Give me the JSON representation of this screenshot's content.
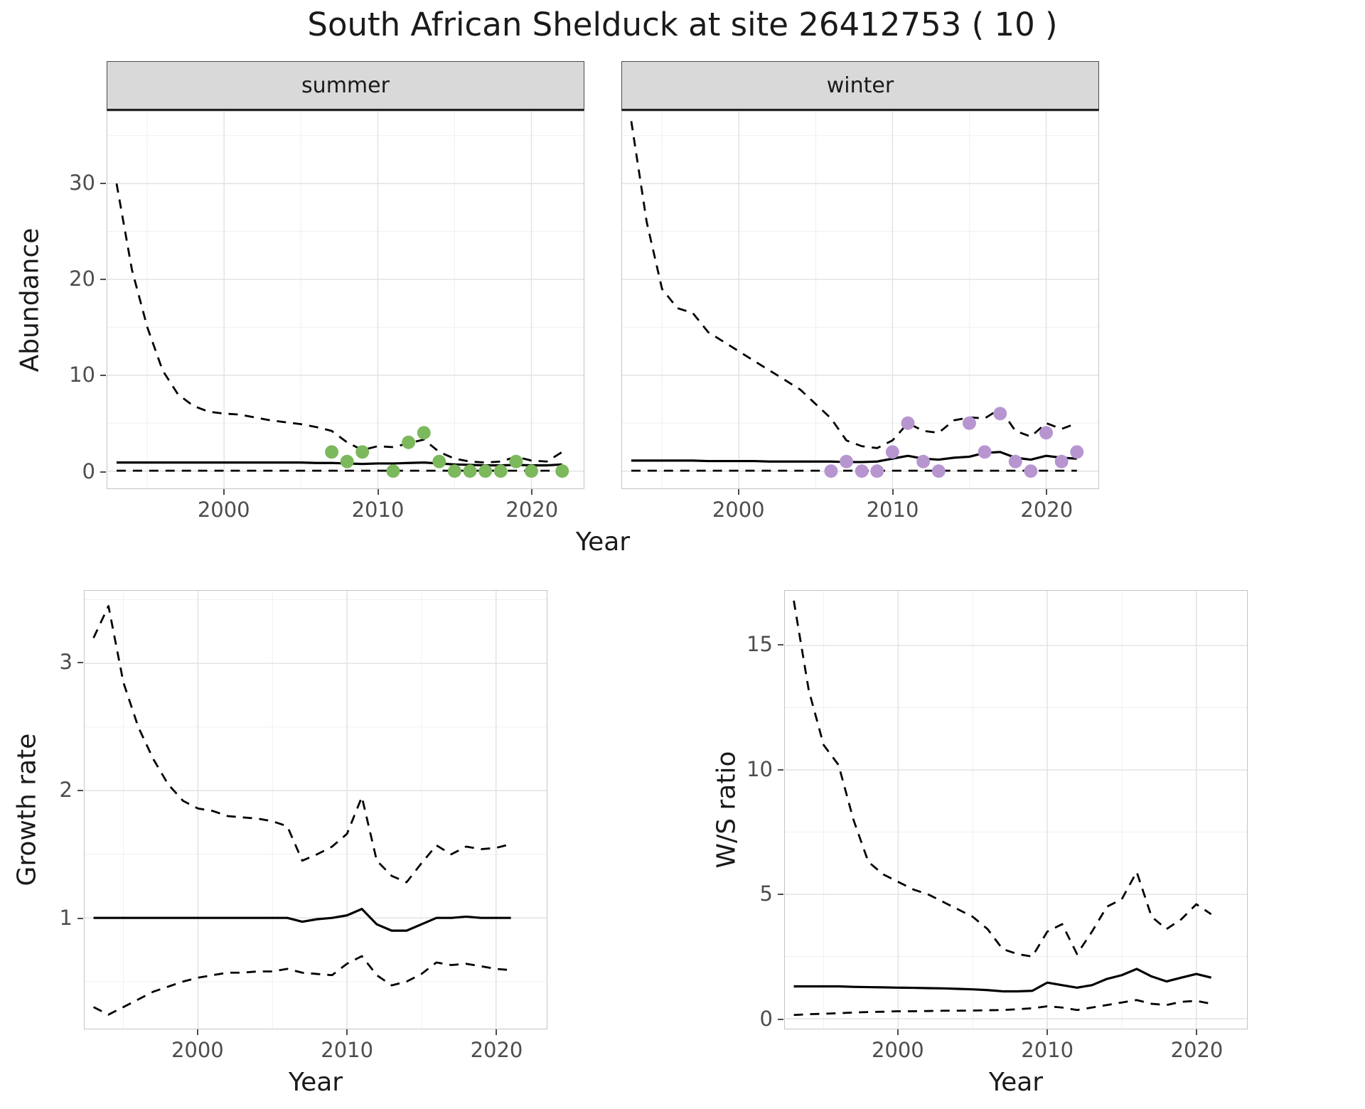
{
  "title": "South African Shelduck at site 26412753 ( 10 )",
  "top_plot": {
    "facets": [
      "summer",
      "winter"
    ],
    "y_axis_label": "Abundance",
    "x_axis_label": "Year"
  },
  "growth_plot": {
    "y_axis_label": "Growth rate",
    "x_axis_label": "Year"
  },
  "ws_plot": {
    "y_axis_label": "W/S ratio",
    "x_axis_label": "Year"
  },
  "colors": {
    "summer_point": "#7cb85c",
    "winter_point": "#b795cf",
    "line": "#000000",
    "strip_bg": "#d9d9d9",
    "grid_major": "#e3e3e3",
    "grid_minor": "#f0f0f0",
    "panel_border": "#c4c4c4",
    "tick_text": "#4d4d4d"
  },
  "chart_data": [
    {
      "type": "line",
      "name": "abundance-summer",
      "facet": "summer",
      "xlabel": "Year",
      "ylabel": "Abundance",
      "xlim": [
        1992.4,
        2023.4
      ],
      "ylim": [
        -1.8,
        37.5
      ],
      "xticks": [
        2000,
        2010,
        2020
      ],
      "x_minor": [
        1995,
        2005,
        2015
      ],
      "yticks": [
        0,
        10,
        20,
        30
      ],
      "y_minor": [
        5,
        15,
        25,
        35
      ],
      "x": [
        1993,
        1994,
        1995,
        1996,
        1997,
        1998,
        1999,
        2000,
        2001,
        2002,
        2003,
        2004,
        2005,
        2006,
        2007,
        2008,
        2009,
        2010,
        2011,
        2012,
        2013,
        2014,
        2015,
        2016,
        2017,
        2018,
        2019,
        2020,
        2021,
        2022
      ],
      "series": [
        {
          "name": "upper-credible-interval",
          "linetype": "dashed",
          "values": [
            30,
            21,
            15,
            10.5,
            8,
            6.8,
            6.2,
            6,
            5.9,
            5.6,
            5.3,
            5.1,
            4.9,
            4.6,
            4.2,
            3,
            2.2,
            2.6,
            2.5,
            2.9,
            3.3,
            2,
            1.3,
            1,
            0.9,
            1,
            1.5,
            1.1,
            1,
            2
          ]
        },
        {
          "name": "median",
          "linetype": "solid",
          "values": [
            0.9,
            0.9,
            0.9,
            0.9,
            0.9,
            0.9,
            0.9,
            0.9,
            0.9,
            0.9,
            0.9,
            0.9,
            0.9,
            0.85,
            0.85,
            0.8,
            0.75,
            0.8,
            0.8,
            0.85,
            0.9,
            0.8,
            0.7,
            0.65,
            0.6,
            0.6,
            0.65,
            0.6,
            0.6,
            0.7
          ]
        },
        {
          "name": "lower-credible-interval",
          "linetype": "dashed",
          "values": [
            0.05,
            0.05,
            0.05,
            0.05,
            0.05,
            0.05,
            0.05,
            0.05,
            0.05,
            0.05,
            0.05,
            0.05,
            0.05,
            0.05,
            0.05,
            0.05,
            0.05,
            0.05,
            0.05,
            0.05,
            0.05,
            0.05,
            0.05,
            0.05,
            0.05,
            0.05,
            0.05,
            0.05,
            0.05,
            0.05
          ]
        }
      ],
      "points": {
        "name": "observed-summer-counts",
        "color_key": "summer_point",
        "data": [
          [
            2007,
            2
          ],
          [
            2008,
            1
          ],
          [
            2009,
            2
          ],
          [
            2011,
            0
          ],
          [
            2012,
            3
          ],
          [
            2013,
            4
          ],
          [
            2014,
            1
          ],
          [
            2015,
            0
          ],
          [
            2016,
            0
          ],
          [
            2017,
            0
          ],
          [
            2018,
            0
          ],
          [
            2019,
            1
          ],
          [
            2020,
            0
          ],
          [
            2022,
            0
          ]
        ]
      }
    },
    {
      "type": "line",
      "name": "abundance-winter",
      "facet": "winter",
      "xlabel": "Year",
      "ylabel": "Abundance",
      "xlim": [
        1992.4,
        2023.4
      ],
      "ylim": [
        -1.8,
        37.5
      ],
      "xticks": [
        2000,
        2010,
        2020
      ],
      "x_minor": [
        1995,
        2005,
        2015
      ],
      "yticks": [
        0,
        10,
        20,
        30
      ],
      "y_minor": [
        5,
        15,
        25,
        35
      ],
      "x": [
        1993,
        1994,
        1995,
        1996,
        1997,
        1998,
        1999,
        2000,
        2001,
        2002,
        2003,
        2004,
        2005,
        2006,
        2007,
        2008,
        2009,
        2010,
        2011,
        2012,
        2013,
        2014,
        2015,
        2016,
        2017,
        2018,
        2019,
        2020,
        2021,
        2022
      ],
      "series": [
        {
          "name": "upper-credible-interval",
          "linetype": "dashed",
          "values": [
            36.5,
            26,
            19,
            17,
            16.5,
            14.5,
            13.5,
            12.5,
            11.5,
            10.5,
            9.5,
            8.5,
            7,
            5.5,
            3.2,
            2.6,
            2.4,
            3.2,
            5,
            4.2,
            4,
            5.3,
            5.6,
            5.5,
            6.5,
            4.2,
            3.6,
            5,
            4.4,
            5
          ]
        },
        {
          "name": "median",
          "linetype": "solid",
          "values": [
            1.1,
            1.1,
            1.1,
            1.1,
            1.1,
            1.05,
            1.05,
            1.05,
            1.05,
            1,
            1,
            1,
            1,
            1,
            0.95,
            0.95,
            1,
            1.3,
            1.6,
            1.3,
            1.2,
            1.4,
            1.5,
            1.9,
            2,
            1.4,
            1.2,
            1.6,
            1.4,
            1.3
          ]
        },
        {
          "name": "lower-credible-interval",
          "linetype": "dashed",
          "values": [
            0.05,
            0.05,
            0.05,
            0.05,
            0.05,
            0.05,
            0.05,
            0.05,
            0.05,
            0.05,
            0.05,
            0.05,
            0.05,
            0.05,
            0.05,
            0.05,
            0.05,
            0.05,
            0.05,
            0.05,
            0.05,
            0.05,
            0.05,
            0.05,
            0.05,
            0.05,
            0.05,
            0.05,
            0.05,
            0.05
          ]
        }
      ],
      "points": {
        "name": "observed-winter-counts",
        "color_key": "winter_point",
        "data": [
          [
            2006,
            0
          ],
          [
            2007,
            1
          ],
          [
            2008,
            0
          ],
          [
            2009,
            0
          ],
          [
            2010,
            2
          ],
          [
            2011,
            5
          ],
          [
            2012,
            1
          ],
          [
            2013,
            0
          ],
          [
            2015,
            5
          ],
          [
            2016,
            2
          ],
          [
            2017,
            6
          ],
          [
            2018,
            1
          ],
          [
            2019,
            0
          ],
          [
            2020,
            4
          ],
          [
            2021,
            1
          ],
          [
            2022,
            2
          ]
        ]
      }
    },
    {
      "type": "line",
      "name": "growth-rate",
      "xlabel": "Year",
      "ylabel": "Growth rate",
      "xlim": [
        1992.4,
        2023.4
      ],
      "ylim": [
        0.13,
        3.57
      ],
      "xticks": [
        2000,
        2010,
        2020
      ],
      "x_minor": [
        1995,
        2005,
        2015
      ],
      "yticks": [
        1,
        2,
        3
      ],
      "y_minor": [
        0.5,
        1.5,
        2.5,
        3.5
      ],
      "x": [
        1993,
        1994,
        1995,
        1996,
        1997,
        1998,
        1999,
        2000,
        2001,
        2002,
        2003,
        2004,
        2005,
        2006,
        2007,
        2008,
        2009,
        2010,
        2011,
        2012,
        2013,
        2014,
        2015,
        2016,
        2017,
        2018,
        2019,
        2020,
        2021
      ],
      "series": [
        {
          "name": "upper-credible-interval",
          "linetype": "dashed",
          "values": [
            3.2,
            3.45,
            2.85,
            2.5,
            2.25,
            2.05,
            1.92,
            1.86,
            1.84,
            1.8,
            1.79,
            1.78,
            1.76,
            1.72,
            1.45,
            1.5,
            1.56,
            1.66,
            1.95,
            1.45,
            1.33,
            1.28,
            1.43,
            1.57,
            1.5,
            1.56,
            1.54,
            1.55,
            1.58
          ]
        },
        {
          "name": "median",
          "linetype": "solid",
          "values": [
            1,
            1,
            1,
            1,
            1,
            1,
            1,
            1,
            1,
            1,
            1,
            1,
            1,
            1,
            0.97,
            0.99,
            1,
            1.02,
            1.07,
            0.95,
            0.9,
            0.9,
            0.95,
            1,
            1,
            1.01,
            1,
            1,
            1
          ]
        },
        {
          "name": "lower-credible-interval",
          "linetype": "dashed",
          "values": [
            0.3,
            0.24,
            0.3,
            0.36,
            0.42,
            0.46,
            0.5,
            0.53,
            0.55,
            0.57,
            0.57,
            0.58,
            0.58,
            0.6,
            0.57,
            0.56,
            0.55,
            0.64,
            0.7,
            0.55,
            0.47,
            0.5,
            0.56,
            0.65,
            0.63,
            0.64,
            0.62,
            0.6,
            0.59
          ]
        }
      ]
    },
    {
      "type": "line",
      "name": "winter-summer-ratio",
      "xlabel": "Year",
      "ylabel": "W/S ratio",
      "xlim": [
        1992.4,
        2023.4
      ],
      "ylim": [
        -0.4,
        17.2
      ],
      "xticks": [
        2000,
        2010,
        2020
      ],
      "x_minor": [
        1995,
        2005,
        2015
      ],
      "yticks": [
        0,
        5,
        10,
        15
      ],
      "y_minor": [
        2.5,
        7.5,
        12.5
      ],
      "x": [
        1993,
        1994,
        1995,
        1996,
        1997,
        1998,
        1999,
        2000,
        2001,
        2002,
        2003,
        2004,
        2005,
        2006,
        2007,
        2008,
        2009,
        2010,
        2011,
        2012,
        2013,
        2014,
        2015,
        2016,
        2017,
        2018,
        2019,
        2020,
        2021
      ],
      "series": [
        {
          "name": "upper-credible-interval",
          "linetype": "dashed",
          "values": [
            16.8,
            13.2,
            11,
            10.2,
            8,
            6.3,
            5.8,
            5.5,
            5.2,
            5,
            4.7,
            4.4,
            4.1,
            3.6,
            2.8,
            2.6,
            2.5,
            3.5,
            3.8,
            2.6,
            3.5,
            4.5,
            4.8,
            5.9,
            4.1,
            3.6,
            4,
            4.6,
            4.2
          ]
        },
        {
          "name": "median",
          "linetype": "solid",
          "values": [
            1.3,
            1.3,
            1.3,
            1.3,
            1.28,
            1.27,
            1.26,
            1.25,
            1.24,
            1.23,
            1.22,
            1.2,
            1.18,
            1.15,
            1.1,
            1.1,
            1.12,
            1.45,
            1.35,
            1.25,
            1.35,
            1.6,
            1.75,
            2,
            1.7,
            1.5,
            1.65,
            1.8,
            1.65
          ]
        },
        {
          "name": "lower-credible-interval",
          "linetype": "dashed",
          "values": [
            0.15,
            0.18,
            0.2,
            0.22,
            0.25,
            0.27,
            0.28,
            0.3,
            0.3,
            0.31,
            0.32,
            0.32,
            0.33,
            0.34,
            0.35,
            0.38,
            0.42,
            0.5,
            0.45,
            0.35,
            0.45,
            0.55,
            0.65,
            0.75,
            0.6,
            0.55,
            0.68,
            0.72,
            0.6
          ]
        }
      ]
    }
  ]
}
